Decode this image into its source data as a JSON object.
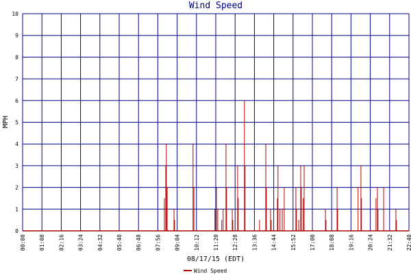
{
  "chart_data": {
    "type": "bar",
    "title": "Wind Speed",
    "y_label": "MPH",
    "x_label": "08/17/15 (EDT)",
    "color": "#b00000",
    "grid": true,
    "grid_color": "#000080",
    "series": [
      {
        "name": "Wind Speed",
        "color": "#b00000",
        "x": [
          499,
          504,
          506,
          509,
          533,
          535,
          600,
          603,
          677,
          682,
          687,
          701,
          706,
          716,
          718,
          738,
          740,
          757,
          759,
          781,
          783,
          834,
          856,
          858,
          873,
          875,
          897,
          899,
          906,
          914,
          921,
          962,
          964,
          972,
          979,
          981,
          988,
          991,
          1066,
          1068,
          1107,
          1109,
          1181,
          1191,
          1193,
          1244,
          1249,
          1251,
          1271,
          1314,
          1316
        ],
        "values": [
          1.5,
          3,
          4,
          2,
          1,
          0.5,
          4,
          2,
          1,
          2,
          1,
          0.5,
          1,
          4,
          2,
          1,
          0.5,
          3,
          1.5,
          6,
          3,
          0.5,
          4,
          2,
          1,
          0.5,
          1.5,
          3,
          1,
          1,
          2,
          2,
          1,
          0.5,
          3,
          2,
          1.5,
          3,
          1,
          0.5,
          2,
          1,
          2,
          3,
          1.5,
          1.5,
          2,
          1,
          2,
          1,
          0.5
        ]
      }
    ],
    "xlim": [
      0,
      1360
    ],
    "xticks": [
      {
        "value": 0,
        "label": "00:00"
      },
      {
        "value": 68,
        "label": "01:08"
      },
      {
        "value": 136,
        "label": "02:16"
      },
      {
        "value": 204,
        "label": "03:24"
      },
      {
        "value": 272,
        "label": "04:32"
      },
      {
        "value": 340,
        "label": "05:40"
      },
      {
        "value": 408,
        "label": "06:48"
      },
      {
        "value": 476,
        "label": "07:56"
      },
      {
        "value": 544,
        "label": "09:04"
      },
      {
        "value": 612,
        "label": "10:12"
      },
      {
        "value": 680,
        "label": "11:20"
      },
      {
        "value": 748,
        "label": "12:28"
      },
      {
        "value": 816,
        "label": "13:36"
      },
      {
        "value": 884,
        "label": "14:44"
      },
      {
        "value": 952,
        "label": "15:52"
      },
      {
        "value": 1020,
        "label": "17:00"
      },
      {
        "value": 1088,
        "label": "18:08"
      },
      {
        "value": 1156,
        "label": "19:16"
      },
      {
        "value": 1224,
        "label": "20:24"
      },
      {
        "value": 1292,
        "label": "21:32"
      },
      {
        "value": 1360,
        "label": "22:40"
      }
    ],
    "ylim": [
      0,
      10
    ],
    "yticks": [
      0,
      1,
      2,
      3,
      4,
      5,
      6,
      7,
      8,
      9,
      10
    ]
  }
}
